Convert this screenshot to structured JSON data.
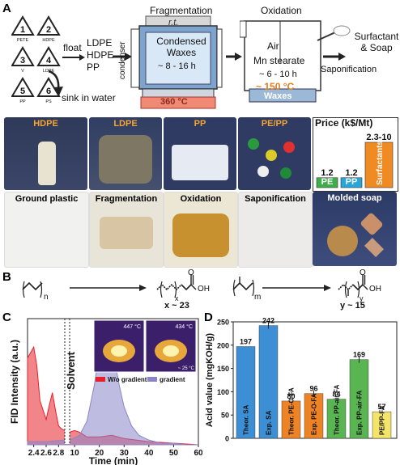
{
  "panelA": {
    "label": "A",
    "recycle_codes": [
      {
        "num": "1",
        "name": "PETE"
      },
      {
        "num": "2",
        "name": "HDPE"
      },
      {
        "num": "3",
        "name": "V"
      },
      {
        "num": "4",
        "name": "LDPE"
      },
      {
        "num": "5",
        "name": "PP"
      },
      {
        "num": "6",
        "name": "PS"
      }
    ],
    "float_label": "float",
    "float_items": [
      "LDPE",
      "HDPE",
      "PP"
    ],
    "sink_label": "sink in water",
    "fragmentation_title": "Fragmentation",
    "rt_label": "r.t.",
    "condensed_label": "Condensed\nWaxes",
    "frag_time": "~ 8 - 16 h",
    "condenser_label": "condenser",
    "frag_temp": "360 °C",
    "oxidation_title": "Oxidation",
    "air_label": "Air",
    "mn_label": "Mn stearate",
    "ox_time": "~ 6 - 10 h",
    "ox_temp": "~ 150 °C",
    "waxes_label": "Waxes",
    "sapon_label": "Saponification",
    "surfactant_label": "Surfactant\n& Soap",
    "price_title": "Price (k$/Mt)",
    "prices": [
      {
        "name": "PE",
        "value": "1.2",
        "num": 1.2,
        "color": "#3dae4a"
      },
      {
        "name": "PP",
        "value": "1.2",
        "num": 1.2,
        "color": "#2aa6d8"
      },
      {
        "name": "Surfactants",
        "value": "2.3-10",
        "num": 5.5,
        "color": "#f08a22"
      }
    ],
    "photo_row1": [
      "HDPE",
      "LDPE",
      "PP",
      "PE/PP"
    ],
    "photo_row2": [
      "Ground plastic",
      "Fragmentation",
      "Oxidation",
      "Saponification",
      "Molded soap"
    ]
  },
  "panelB": {
    "label": "B",
    "sub_n": "n",
    "sub_x": "x",
    "x_eq": "x ~ 23",
    "sub_m": "m",
    "sub_y": "y",
    "y_eq": "y ~ 15",
    "oh": "OH",
    "o": "O"
  },
  "panelC": {
    "label": "C",
    "chart_data": {
      "type": "area",
      "ylabel": "FID Intensity (a.u.)",
      "xlabel": "Time (min)",
      "x_ticks": [
        "2.4",
        "2.6",
        "2.8",
        "10",
        "20",
        "30",
        "40",
        "50",
        "60"
      ],
      "solvent_label": "Solvent",
      "series": [
        {
          "name": "W/o gradient",
          "color": "#e8202a",
          "x": [
            2.3,
            2.4,
            2.45,
            2.5,
            2.6,
            2.65,
            2.7,
            2.75,
            2.8,
            2.85,
            2.9,
            8,
            10,
            12,
            15,
            20,
            25,
            30,
            40,
            50,
            60
          ],
          "y": [
            0.55,
            0.62,
            0.5,
            0.28,
            0.16,
            0.25,
            0.33,
            0.22,
            0.12,
            0.1,
            0.09,
            0.08,
            0.09,
            0.08,
            0.05,
            0.05,
            0.06,
            0.04,
            0.02,
            0.01,
            0.0
          ]
        },
        {
          "name": "gradient",
          "color": "#8a85c9",
          "x": [
            2.3,
            2.6,
            2.9,
            8,
            12,
            15,
            18,
            20,
            22,
            24,
            26,
            28,
            30,
            33,
            36,
            40,
            45,
            50,
            55,
            60
          ],
          "y": [
            0.02,
            0.02,
            0.03,
            0.03,
            0.06,
            0.15,
            0.38,
            0.6,
            0.74,
            0.7,
            0.55,
            0.38,
            0.24,
            0.12,
            0.06,
            0.03,
            0.01,
            0.01,
            0.0,
            0.0
          ]
        }
      ],
      "inset_temps": [
        "447 °C",
        "434 °C"
      ],
      "inset_bottom": "~ 25 °C"
    }
  },
  "panelD": {
    "label": "D",
    "chart_data": {
      "type": "bar",
      "ylabel": "Acid value (mgKOH/g)",
      "ylim": [
        0,
        250
      ],
      "y_ticks": [
        0,
        50,
        100,
        150,
        200,
        250
      ],
      "categories": [
        "Theor. SA",
        "Exp. SA",
        "Theor. PE-O-FA",
        "Exp. PE-O-FA",
        "Theor. PP-air-FA",
        "Exp. PP-air-FA",
        "PE/PP-FA"
      ],
      "values": [
        197,
        242,
        80,
        96,
        84,
        169,
        57
      ],
      "value_labels": [
        "197",
        "242",
        "80",
        "96",
        "84",
        "169",
        "57"
      ],
      "colors": [
        "#3c8fd4",
        "#3c8fd4",
        "#ee8326",
        "#ee8326",
        "#59b551",
        "#59b551",
        "#f4e56a"
      ]
    }
  }
}
